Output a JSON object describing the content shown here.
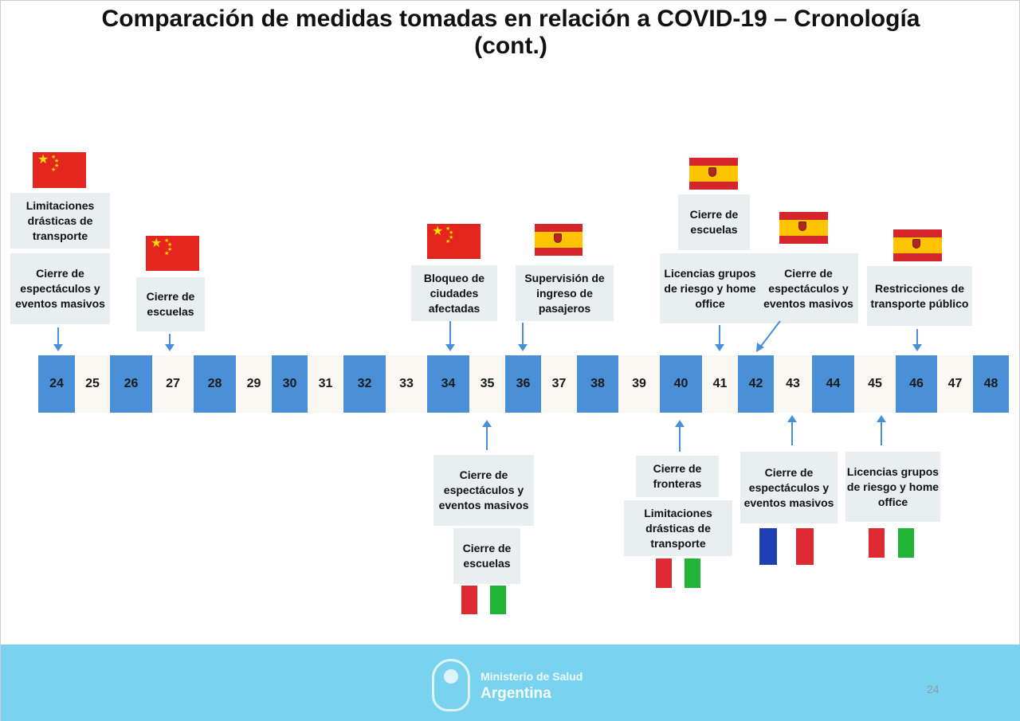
{
  "title": {
    "line1": "Comparación de medidas tomadas en relación a COVID-19 – Cronología",
    "line2": "(cont.)"
  },
  "timeline": {
    "days": [
      "24",
      "25",
      "26",
      "27",
      "28",
      "29",
      "30",
      "31",
      "32",
      "33",
      "34",
      "35",
      "36",
      "37",
      "38",
      "39",
      "40",
      "41",
      "42",
      "43",
      "44",
      "45",
      "46",
      "47",
      "48"
    ]
  },
  "events_above": {
    "day24_a": "Limitaciones drásticas de transporte",
    "day24_b": "Cierre de espectáculos y eventos masivos",
    "day27": "Cierre de escuelas",
    "day34": "Bloqueo de ciudades afectadas",
    "day36": "Supervisión de ingreso de pasajeros",
    "day41_a": "Cierre de escuelas",
    "day41_b": "Licencias grupos de riesgo y home office",
    "day42": "Cierre de espectáculos y eventos masivos",
    "day46": "Restricciones de transporte público"
  },
  "events_below": {
    "day35_a": "Cierre de espectáculos y eventos masivos",
    "day35_b": "Cierre de escuelas",
    "day40_a": "Cierre de fronteras",
    "day40_b": "Limitaciones drásticas de transporte",
    "day43": "Cierre de espectáculos y eventos masivos",
    "day45": "Licencias grupos de riesgo y home office"
  },
  "flags": {
    "china": "china-flag",
    "spain": "spain-flag",
    "italy": "italy-flag",
    "france": "france-flag"
  },
  "colors": {
    "even_day": "#4a90d9",
    "odd_day": "#faf8f2",
    "label_box": "#e9eef1",
    "footer": "#7ad3ee"
  },
  "footer": {
    "ministry": "Ministerio de Salud",
    "country": "Argentina",
    "page": "24"
  }
}
